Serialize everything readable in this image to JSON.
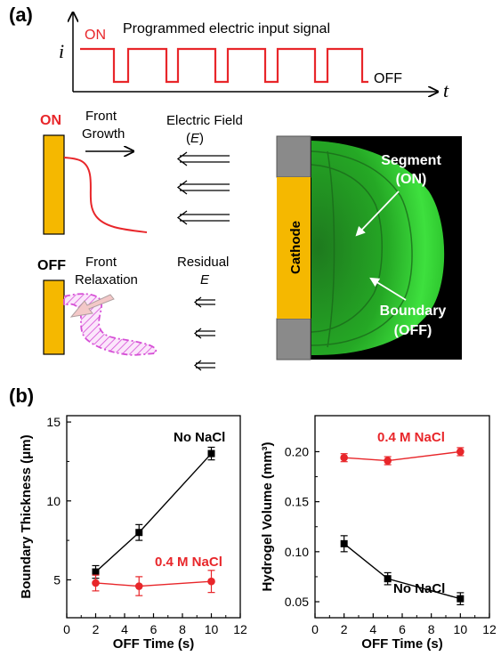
{
  "panel_a": {
    "label": "(a)",
    "signal": {
      "title": "Programmed electric input signal",
      "y_symbol": "i",
      "x_symbol": "t",
      "on_label": "ON",
      "off_label": "OFF",
      "color": "#e8262a"
    },
    "on_state": {
      "label": "ON",
      "label_color": "#e8262a",
      "front_growth_line1": "Front",
      "front_growth_line2": "Growth",
      "field_line1": "Electric Field",
      "field_line2_open": "(",
      "field_line2_sym": "E",
      "field_line2_close": ")"
    },
    "off_state": {
      "label": "OFF",
      "relax_line1": "Front",
      "relax_line2": "Relaxation",
      "residual_line1": "Residual",
      "residual_line2": "E"
    },
    "photo": {
      "cathode_label": "Cathode",
      "segment_line1": "Segment",
      "segment_line2": "(ON)",
      "boundary_line1": "Boundary",
      "boundary_line2": "(OFF)"
    },
    "colors": {
      "electrode": "#f5b800",
      "relaxation_hatch": "#d64fd6",
      "hydrogel": "#2fd22f"
    }
  },
  "panel_b": {
    "label": "(b)"
  },
  "chart_data": [
    {
      "type": "scatter",
      "xlabel": "OFF Time (s)",
      "ylabel": "Boundary Thickness (μm)",
      "xlim": [
        0,
        12
      ],
      "ylim": [
        2.6,
        15.4
      ],
      "xticks": [
        0,
        2,
        4,
        6,
        8,
        10,
        12
      ],
      "yticks": [
        5,
        10,
        15
      ],
      "x_tick_labels": [
        "0",
        "2",
        "4",
        "6",
        "8",
        "10",
        "12"
      ],
      "y_tick_labels": [
        "5",
        "10",
        "15"
      ],
      "series": [
        {
          "name": "No NaCl",
          "color": "#000000",
          "marker": "square",
          "x": [
            2,
            5,
            10
          ],
          "y": [
            5.5,
            8.0,
            13.0
          ],
          "err": [
            0.4,
            0.5,
            0.4
          ]
        },
        {
          "name": "0.4 M NaCl",
          "color": "#e8262a",
          "marker": "circle",
          "x": [
            2,
            5,
            10
          ],
          "y": [
            4.8,
            4.6,
            4.9
          ],
          "err": [
            0.5,
            0.6,
            0.7
          ]
        }
      ]
    },
    {
      "type": "scatter",
      "xlabel": "OFF Time (s)",
      "ylabel": "Hydrogel Volume (mm³)",
      "xlim": [
        0,
        12
      ],
      "ylim": [
        0.034,
        0.236
      ],
      "xticks": [
        0,
        2,
        4,
        6,
        8,
        10,
        12
      ],
      "yticks": [
        0.05,
        0.1,
        0.15,
        0.2
      ],
      "x_tick_labels": [
        "0",
        "2",
        "4",
        "6",
        "8",
        "10",
        "12"
      ],
      "y_tick_labels": [
        "0.05",
        "0.10",
        "0.15",
        "0.20"
      ],
      "series": [
        {
          "name": "0.4 M NaCl",
          "color": "#e8262a",
          "marker": "circle",
          "x": [
            2,
            5,
            10
          ],
          "y": [
            0.194,
            0.191,
            0.2
          ],
          "err": [
            0.004,
            0.004,
            0.004
          ]
        },
        {
          "name": "No NaCl",
          "color": "#000000",
          "marker": "square",
          "x": [
            2,
            5,
            10
          ],
          "y": [
            0.108,
            0.073,
            0.053
          ],
          "err": [
            0.008,
            0.006,
            0.006
          ]
        }
      ]
    }
  ]
}
